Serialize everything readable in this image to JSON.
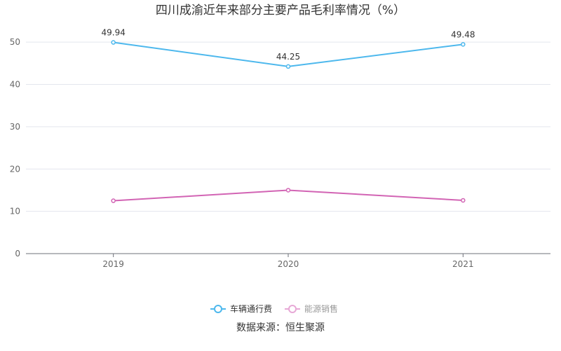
{
  "chart_data": {
    "type": "line",
    "title": "四川成渝近年来部分主要产品毛利率情况（%）",
    "categories": [
      "2019",
      "2020",
      "2021"
    ],
    "series": [
      {
        "name": "车辆通行费",
        "values": [
          49.94,
          44.25,
          49.48
        ],
        "color": "#4db8ed",
        "labels_shown": true
      },
      {
        "name": "能源销售",
        "values": [
          12.5,
          15.0,
          12.6
        ],
        "color": "#d264b4",
        "labels_shown": false
      }
    ],
    "ylim": [
      0,
      55
    ],
    "yticks": [
      0,
      10,
      20,
      30,
      40,
      50
    ],
    "grid": true,
    "legend_position": "bottom",
    "legend_inactive_color": "#999999",
    "source": "数据来源：恒生聚源"
  }
}
